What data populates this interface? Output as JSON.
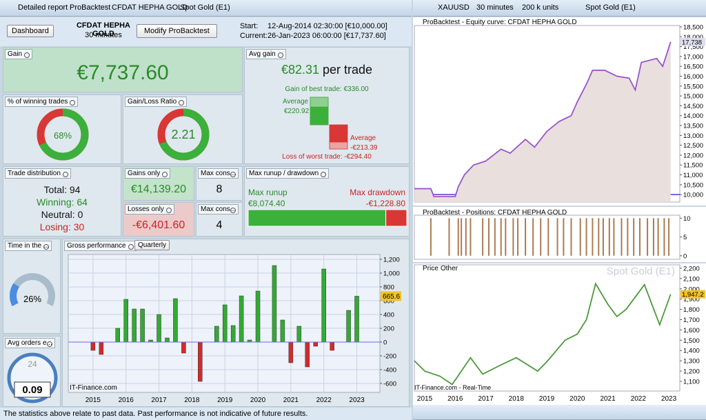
{
  "left_toolbar": {
    "tabs": [
      "Detailed report",
      "ProBacktest",
      "CFDAT HEPHA GOLD",
      "Spot Gold (E1)"
    ]
  },
  "header": {
    "dashboard": "Dashboard",
    "system": "CFDAT HEPHA GOLD",
    "timeframe": "30 minutes",
    "button": "Modify ProBacktest",
    "start_label": "Start:",
    "start": "12-Aug-2014 02:30:00 [€10,000.00]",
    "current_label": "Current:",
    "current": "26-Jan-2023 06:00:00 [€17,737.60]"
  },
  "gain": {
    "label": "Gain",
    "value": "€7,737.60"
  },
  "avg_gain": {
    "label": "Avg gain",
    "value": "€82.31",
    "suffix": "per trade",
    "positive": {
      "best_label": "Gain of best trade: €336.00",
      "best_value": 336,
      "average_label": "Average",
      "average_value": 220.92,
      "average_value_label": "€220.92"
    },
    "negative": {
      "worst_label": "Loss of worst trade: -€294.40",
      "worst_value": -294.4,
      "average_label": "Average",
      "average_value": -213.39,
      "average_value_label": "-€213.39"
    }
  },
  "winning": {
    "label": "% of winning trades",
    "value": 68,
    "value_label": "68%"
  },
  "gain_loss_ratio": {
    "label": "Gain/Loss Ratio",
    "value": 2.21
  },
  "trade_distribution": {
    "label": "Trade distribution",
    "rows": [
      {
        "label": "Total:",
        "value": 94
      },
      {
        "label": "Winning:",
        "value": 64
      },
      {
        "label": "Neutral:",
        "value": 0
      },
      {
        "label": "Losing:",
        "value": 30
      }
    ]
  },
  "gains_only": {
    "label": "Gains only",
    "value": "€14,139.20"
  },
  "losses_only": {
    "label": "Losses only",
    "value": "-€6,401.60"
  },
  "max_cons_wins": {
    "label": "Max cons...",
    "value": 8
  },
  "max_cons_losses": {
    "label": "Max cons...",
    "value": 4
  },
  "runup_drawdown": {
    "label": "Max runup / drawdown",
    "runup": {
      "label": "Max runup",
      "value": 8074.4,
      "value_label": "€8,074.40"
    },
    "drawdown": {
      "label": "Max drawdown",
      "value": -1228.8,
      "value_label": "-€1,228.80"
    }
  },
  "time_in_market": {
    "label": "Time in the ...",
    "value": 26,
    "value_label": "26%"
  },
  "avg_orders": {
    "label": "Avg orders e...",
    "clock": "24",
    "value": "0.09"
  },
  "gross_performance": {
    "label": "Gross performance",
    "period": "Quarterly",
    "watermark": "IT-Finance.com"
  },
  "right_toolbar": {
    "symbol": "XAUUSD",
    "timeframe": "30 minutes",
    "units": "200 k units",
    "instrument": "Spot Gold (E1)"
  },
  "chart_data": [
    {
      "type": "bar",
      "color_pos": "#33aa33",
      "color_neg": "#d42a2a",
      "x": [
        2015,
        2015.25,
        2015.75,
        2016,
        2016.25,
        2016.5,
        2016.75,
        2017,
        2017.25,
        2017.5,
        2017.75,
        2018.25,
        2018.75,
        2019,
        2019.25,
        2019.5,
        2019.75,
        2020,
        2020.5,
        2020.75,
        2021,
        2021.25,
        2021.5,
        2021.75,
        2022,
        2022.25,
        2022.75,
        2023
      ],
      "values": [
        -120,
        -180,
        200,
        620,
        480,
        480,
        30,
        400,
        60,
        630,
        -160,
        -570,
        230,
        540,
        240,
        670,
        30,
        740,
        1110,
        320,
        -300,
        230,
        -360,
        -60,
        1060,
        -120,
        460,
        665.6
      ],
      "xlim": [
        2014.25,
        2023.7
      ],
      "ylim": [
        -730,
        1270
      ],
      "xticks": [
        2015,
        2016,
        2017,
        2018,
        2019,
        2020,
        2021,
        2022,
        2023
      ],
      "yticks": [
        -600,
        -400,
        -200,
        0,
        200,
        400,
        600,
        800,
        {
          "value": 1000,
          "label": "1,000"
        },
        {
          "value": 1200,
          "label": "1,200"
        }
      ],
      "grid": true
    },
    {
      "type": "line",
      "title": "ProBacktest - Equity curve: CFDAT HEPHA GOLD",
      "color": "#9955cc",
      "x": [
        2014.66,
        2015.2,
        2015.3,
        2016,
        2016.1,
        2016.3,
        2016.6,
        2017,
        2017.5,
        2017.8,
        2018.3,
        2018.6,
        2019,
        2019.4,
        2019.8,
        2020,
        2020.3,
        2020.5,
        2020.9,
        2021.3,
        2021.7,
        2021.9,
        2022.1,
        2022.6,
        2022.8,
        2023.06
      ],
      "values": [
        10300,
        10300,
        9900,
        9900,
        10400,
        11000,
        11500,
        11700,
        12300,
        12100,
        12800,
        12400,
        13200,
        13700,
        14000,
        14700,
        15600,
        16300,
        16300,
        16000,
        15900,
        15300,
        16700,
        16900,
        16500,
        17737.6
      ],
      "current_label": "17,738",
      "xlim": [
        2014.66,
        2023.36
      ],
      "ylim": [
        9620,
        18570
      ],
      "yticks": [
        {
          "value": 10000,
          "label": "10,000"
        },
        {
          "value": 10500,
          "label": "10,500"
        },
        {
          "value": 11000,
          "label": "11,000"
        },
        {
          "value": 11500,
          "label": "11,500"
        },
        {
          "value": 12000,
          "label": "12,000"
        },
        {
          "value": 12500,
          "label": "12,500"
        },
        {
          "value": 13000,
          "label": "13,000"
        },
        {
          "value": 13500,
          "label": "13,500"
        },
        {
          "value": 14000,
          "label": "14,000"
        },
        {
          "value": 14500,
          "label": "14,500"
        },
        {
          "value": 15000,
          "label": "15,000"
        },
        {
          "value": 15500,
          "label": "15,500"
        },
        {
          "value": 16000,
          "label": "16,000"
        },
        {
          "value": 16500,
          "label": "16,500"
        },
        {
          "value": 17000,
          "label": "17,000"
        },
        {
          "value": 17500,
          "label": "17,500"
        },
        {
          "value": 18000,
          "label": "18,000"
        },
        {
          "value": 18500,
          "label": "18,500"
        }
      ],
      "baseline": 10000
    },
    {
      "type": "bar",
      "title": "ProBacktest - Positions: CFDAT HEPHA GOLD",
      "color": "#a97b52",
      "x": [
        2015.2,
        2015.8,
        2016.1,
        2016.2,
        2016.35,
        2016.5,
        2016.9,
        2017.1,
        2017.3,
        2017.5,
        2017.65,
        2017.9,
        2018.05,
        2018.3,
        2018.55,
        2018.8,
        2019.05,
        2019.35,
        2019.55,
        2019.8,
        2020.1,
        2020.3,
        2020.5,
        2020.7,
        2020.85,
        2021.05,
        2021.2,
        2021.45,
        2021.65,
        2021.85,
        2022.05,
        2022.3,
        2022.5,
        2022.65,
        2022.85,
        2023
      ],
      "values": [
        10,
        10,
        10,
        10,
        10,
        10,
        10,
        10,
        10,
        10,
        10,
        10,
        10,
        10,
        10,
        10,
        10,
        10,
        10,
        10,
        10,
        10,
        10,
        10,
        10,
        10,
        10,
        10,
        10,
        10,
        10,
        10,
        10,
        10,
        10,
        10
      ],
      "xlim": [
        2014.66,
        2023.36
      ],
      "ylim": [
        -0.95,
        10.8
      ],
      "yticks": [
        0,
        5,
        10
      ]
    },
    {
      "type": "line",
      "title": "Price",
      "tab": "Other",
      "watermark": "Spot Gold (E1)",
      "source": "IT-Finance.com - Real-Time",
      "color": "#4a9a3a",
      "x": [
        2014.66,
        2015,
        2015.5,
        2015.9,
        2016.5,
        2016.9,
        2017.5,
        2018,
        2018.7,
        2019,
        2019.6,
        2020,
        2020.3,
        2020.6,
        2021,
        2021.3,
        2021.6,
        2022.2,
        2022.7,
        2023.06
      ],
      "values": [
        1300,
        1200,
        1150,
        1070,
        1330,
        1170,
        1260,
        1330,
        1200,
        1290,
        1500,
        1560,
        1700,
        2050,
        1850,
        1730,
        1800,
        2040,
        1650,
        1947.2
      ],
      "current_label": "1,947.2",
      "xlim": [
        2014.66,
        2023.36
      ],
      "ylim": [
        1006,
        2233
      ],
      "xticks": [
        2015,
        2016,
        2017,
        2018,
        2019,
        2020,
        2021,
        2022,
        2023
      ],
      "yticks": [
        {
          "value": 1100,
          "label": "1,100"
        },
        {
          "value": 1200,
          "label": "1,200"
        },
        {
          "value": 1300,
          "label": "1,300"
        },
        {
          "value": 1400,
          "label": "1,400"
        },
        {
          "value": 1500,
          "label": "1,500"
        },
        {
          "value": 1600,
          "label": "1,600"
        },
        {
          "value": 1700,
          "label": "1,700"
        },
        {
          "value": 1800,
          "label": "1,800"
        },
        {
          "value": 1900,
          "label": "1,900"
        },
        {
          "value": 2000,
          "label": "2,000"
        },
        {
          "value": 2100,
          "label": "2,100"
        },
        {
          "value": 2200,
          "label": "2,200"
        }
      ]
    }
  ],
  "footer": "The statistics above relate to past data. Past performance is not indicative of future results."
}
